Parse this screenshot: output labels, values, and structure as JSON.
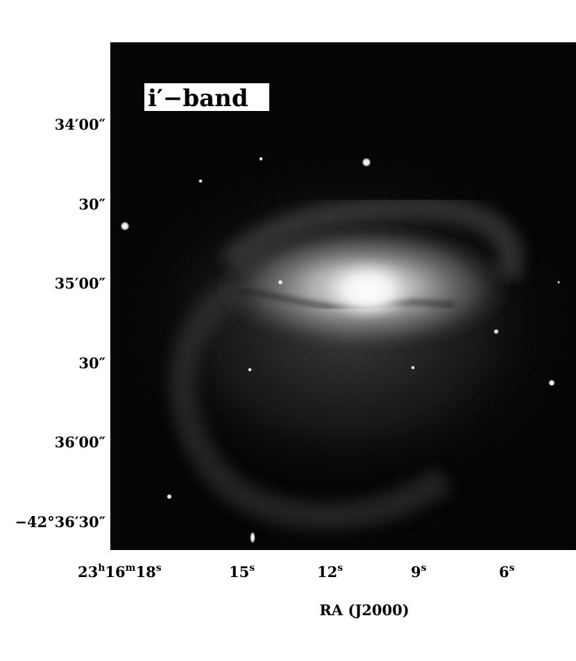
{
  "band_label": "i′−band",
  "x_axis": {
    "title": "RA (J2000)",
    "ticks": [
      {
        "hour": "23",
        "h_sup": "h",
        "min": "16",
        "m_sup": "m",
        "sec": "18",
        "s_sup": "s"
      },
      {
        "sec": "15",
        "s_sup": "s"
      },
      {
        "sec": "12",
        "s_sup": "s"
      },
      {
        "sec": "9",
        "s_sup": "s"
      },
      {
        "sec": "6",
        "s_sup": "s"
      }
    ]
  },
  "y_axis": {
    "ticks": [
      {
        "text": "34′00″"
      },
      {
        "text": "30″"
      },
      {
        "text": "35′00″"
      },
      {
        "text": "30″"
      },
      {
        "text": "36′00″"
      },
      {
        "text": "−42°36′30″"
      }
    ]
  },
  "colors": {
    "sky": "#050505",
    "galaxy_core": "#ffffff",
    "frame": "#000000"
  }
}
